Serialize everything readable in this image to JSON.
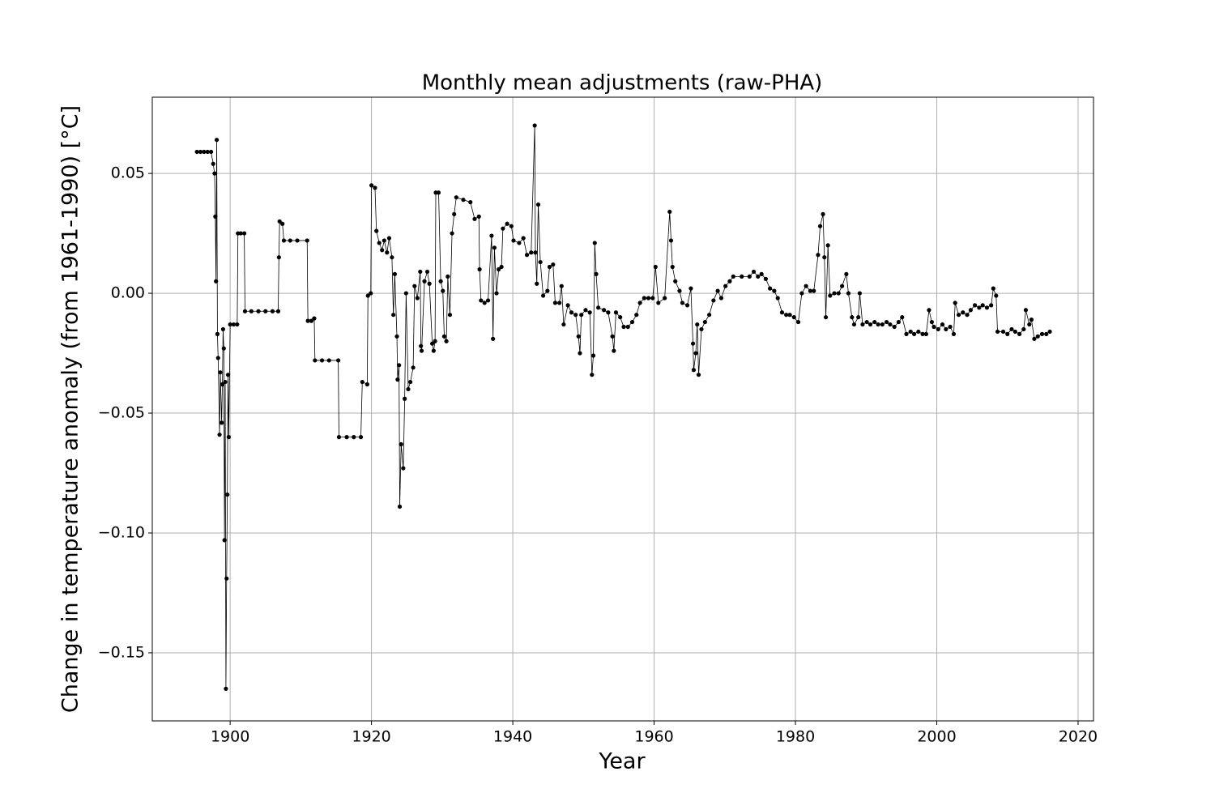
{
  "chart_data": {
    "type": "line",
    "title": "Monthly mean adjustments (raw-PHA)",
    "xlabel": "Year",
    "ylabel": "Change in temperature anomaly (from 1961-1990) [°C]",
    "xlim": [
      1888.98,
      2022.18
    ],
    "ylim": [
      -0.1784,
      0.0818
    ],
    "xticks": [
      1900,
      1920,
      1940,
      1960,
      1980,
      2000,
      2020
    ],
    "yticks": [
      {
        "value": -0.15,
        "label": "−0.15"
      },
      {
        "value": -0.1,
        "label": "−0.10"
      },
      {
        "value": -0.05,
        "label": "−0.05"
      },
      {
        "value": 0,
        "label": "0.00"
      },
      0.05
    ],
    "grid": true,
    "series": [
      {
        "color": "#000000",
        "x": [
          1895.3,
          1895.8,
          1896.3,
          1896.8,
          1897.3,
          1897.6,
          1897.8,
          1897.9,
          1898.0,
          1898.1,
          1898.2,
          1898.3,
          1898.5,
          1898.6,
          1898.8,
          1898.9,
          1899.0,
          1899.1,
          1899.2,
          1899.3,
          1899.4,
          1899.5,
          1899.6,
          1899.7,
          1899.8,
          1900.0,
          1900.5,
          1901.0,
          1901.1,
          1901.5,
          1902.0,
          1902.1,
          1903,
          1904,
          1905,
          1906,
          1906.8,
          1906.9,
          1907.0,
          1907.4,
          1907.6,
          1908.5,
          1909.5,
          1910.9,
          1911.0,
          1911.5,
          1911.9,
          1912.0,
          1913,
          1914,
          1915.3,
          1915.4,
          1916.5,
          1917.5,
          1918.5,
          1918.7,
          1919.4,
          1919.5,
          1919.9,
          1920.0,
          1920.5,
          1920.7,
          1921.1,
          1921.5,
          1921.8,
          1922.2,
          1922.5,
          1922.9,
          1923.1,
          1923.3,
          1923.6,
          1923.7,
          1923.9,
          1924.0,
          1924.2,
          1924.5,
          1924.7,
          1924.9,
          1925.2,
          1925.5,
          1925.9,
          1926.1,
          1926.5,
          1926.9,
          1927.0,
          1927.1,
          1927.5,
          1927.9,
          1928.2,
          1928.6,
          1928.8,
          1929.0,
          1929.1,
          1929.5,
          1929.8,
          1930.1,
          1930.3,
          1930.6,
          1930.8,
          1931.1,
          1931.4,
          1931.7,
          1932.0,
          1933.0,
          1934.0,
          1934.6,
          1935.2,
          1935.3,
          1935.5,
          1936.0,
          1936.5,
          1937.0,
          1937.2,
          1937.4,
          1937.7,
          1938.0,
          1938.4,
          1938.6,
          1939.2,
          1939.8,
          1940.1,
          1940.9,
          1941.5,
          1942.0,
          1942.6,
          1943.1,
          1943.2,
          1943.4,
          1943.6,
          1943.9,
          1944.3,
          1944.9,
          1945.2,
          1945.7,
          1946.0,
          1946.6,
          1946.9,
          1947.2,
          1947.8,
          1948.3,
          1948.9,
          1949.3,
          1949.5,
          1949.7,
          1950.3,
          1950.9,
          1951.2,
          1951.4,
          1951.6,
          1951.8,
          1952.1,
          1952.9,
          1953.5,
          1954.1,
          1954.3,
          1954.6,
          1955.2,
          1955.7,
          1956.3,
          1956.9,
          1957.5,
          1958.0,
          1958.6,
          1959.2,
          1959.8,
          1960.2,
          1960.6,
          1961.5,
          1962.2,
          1962.4,
          1962.6,
          1963.0,
          1963.6,
          1964.0,
          1964.7,
          1965.2,
          1965.5,
          1965.6,
          1965.9,
          1966.1,
          1966.3,
          1966.7,
          1967.2,
          1967.8,
          1968.4,
          1969.0,
          1969.5,
          1970.1,
          1970.7,
          1971.2,
          1972.4,
          1973.5,
          1974.1,
          1974.7,
          1975.2,
          1975.8,
          1976.4,
          1977.0,
          1977.5,
          1978.1,
          1978.7,
          1979.2,
          1979.8,
          1980.4,
          1980.9,
          1981.5,
          1982.1,
          1982.6,
          1983.2,
          1983.5,
          1983.9,
          1984.1,
          1984.3,
          1984.6,
          1984.9,
          1985.5,
          1986.1,
          1986.6,
          1987.2,
          1987.5,
          1988.0,
          1988.3,
          1988.9,
          1989.1,
          1989.5,
          1990.1,
          1990.6,
          1991.2,
          1991.7,
          1992.3,
          1992.9,
          1993.4,
          1994.0,
          1994.6,
          1995.1,
          1995.7,
          1996.3,
          1996.8,
          1997.4,
          1998.0,
          1998.5,
          1998.9,
          1999.3,
          1999.6,
          2000.2,
          2000.8,
          2001.3,
          2001.9,
          2002.4,
          2002.6,
          2003.1,
          2003.7,
          2004.3,
          2004.8,
          2005.4,
          2006.0,
          2006.5,
          2007.1,
          2007.7,
          2008.0,
          2008.4,
          2008.6,
          2009.4,
          2010.0,
          2010.6,
          2011.1,
          2011.7,
          2012.3,
          2012.6,
          2013.1,
          2013.4,
          2013.8,
          2014.3,
          2014.9,
          2015.5,
          2016.0
        ],
        "values": [
          0.059,
          0.059,
          0.059,
          0.059,
          0.059,
          0.054,
          0.05,
          0.032,
          0.005,
          0.064,
          -0.017,
          -0.027,
          -0.059,
          -0.033,
          -0.054,
          -0.038,
          -0.015,
          -0.023,
          -0.103,
          -0.037,
          -0.165,
          -0.119,
          -0.084,
          -0.034,
          -0.06,
          -0.013,
          -0.013,
          -0.013,
          0.025,
          0.025,
          0.025,
          -0.0075,
          -0.0075,
          -0.0075,
          -0.0075,
          -0.0075,
          -0.0075,
          0.015,
          0.03,
          0.029,
          0.022,
          0.022,
          0.022,
          0.022,
          -0.0115,
          -0.0115,
          -0.0105,
          -0.028,
          -0.028,
          -0.028,
          -0.028,
          -0.06,
          -0.06,
          -0.06,
          -0.06,
          -0.037,
          -0.038,
          -0.001,
          0.0,
          0.045,
          0.044,
          0.026,
          0.021,
          0.018,
          0.022,
          0.017,
          0.023,
          0.015,
          -0.009,
          0.008,
          -0.018,
          -0.036,
          -0.03,
          -0.089,
          -0.063,
          -0.073,
          -0.044,
          0.0,
          -0.04,
          -0.037,
          -0.031,
          0.003,
          -0.002,
          0.009,
          -0.022,
          -0.024,
          0.005,
          0.009,
          0.004,
          -0.021,
          -0.024,
          -0.02,
          0.042,
          0.042,
          0.005,
          0.001,
          -0.018,
          -0.02,
          0.007,
          -0.009,
          0.025,
          0.033,
          0.04,
          0.039,
          0.038,
          0.031,
          0.032,
          0.01,
          -0.003,
          -0.004,
          -0.003,
          0.024,
          -0.019,
          0.019,
          0.0,
          0.01,
          0.011,
          0.027,
          0.029,
          0.028,
          0.022,
          0.021,
          0.023,
          0.016,
          0.017,
          0.07,
          0.017,
          0.004,
          0.037,
          0.013,
          -0.001,
          0.001,
          0.011,
          0.012,
          -0.004,
          -0.004,
          0.003,
          -0.013,
          -0.005,
          -0.008,
          -0.009,
          -0.018,
          -0.025,
          -0.009,
          -0.007,
          -0.008,
          -0.034,
          -0.026,
          0.021,
          0.008,
          -0.006,
          -0.007,
          -0.008,
          -0.018,
          -0.024,
          -0.008,
          -0.01,
          -0.014,
          -0.014,
          -0.012,
          -0.009,
          -0.004,
          -0.002,
          -0.002,
          -0.002,
          0.011,
          -0.004,
          -0.002,
          0.034,
          0.022,
          0.011,
          0.005,
          0.001,
          -0.004,
          -0.005,
          0.002,
          -0.021,
          -0.032,
          -0.025,
          -0.013,
          -0.034,
          -0.015,
          -0.012,
          -0.009,
          -0.003,
          0.001,
          -0.002,
          0.003,
          0.005,
          0.007,
          0.007,
          0.007,
          0.009,
          0.007,
          0.008,
          0.006,
          0.002,
          0.001,
          -0.002,
          -0.008,
          -0.009,
          -0.009,
          -0.01,
          -0.012,
          0.0,
          0.003,
          0.001,
          0.001,
          0.016,
          0.028,
          0.033,
          0.015,
          -0.01,
          0.02,
          -0.001,
          0.0,
          0.0,
          0.003,
          0.008,
          0.0,
          -0.01,
          -0.013,
          -0.01,
          0.0,
          -0.013,
          -0.012,
          -0.013,
          -0.012,
          -0.013,
          -0.013,
          -0.012,
          -0.013,
          -0.014,
          -0.012,
          -0.01,
          -0.017,
          -0.016,
          -0.017,
          -0.016,
          -0.017,
          -0.017,
          -0.007,
          -0.012,
          -0.014,
          -0.015,
          -0.013,
          -0.015,
          -0.014,
          -0.017,
          -0.004,
          -0.009,
          -0.008,
          -0.009,
          -0.007,
          -0.005,
          -0.006,
          -0.005,
          -0.006,
          -0.005,
          0.002,
          -0.001,
          -0.016,
          -0.016,
          -0.017,
          -0.015,
          -0.016,
          -0.017,
          -0.015,
          -0.007,
          -0.013,
          -0.011,
          -0.019,
          -0.018,
          -0.017,
          -0.017,
          -0.016
        ]
      }
    ]
  }
}
